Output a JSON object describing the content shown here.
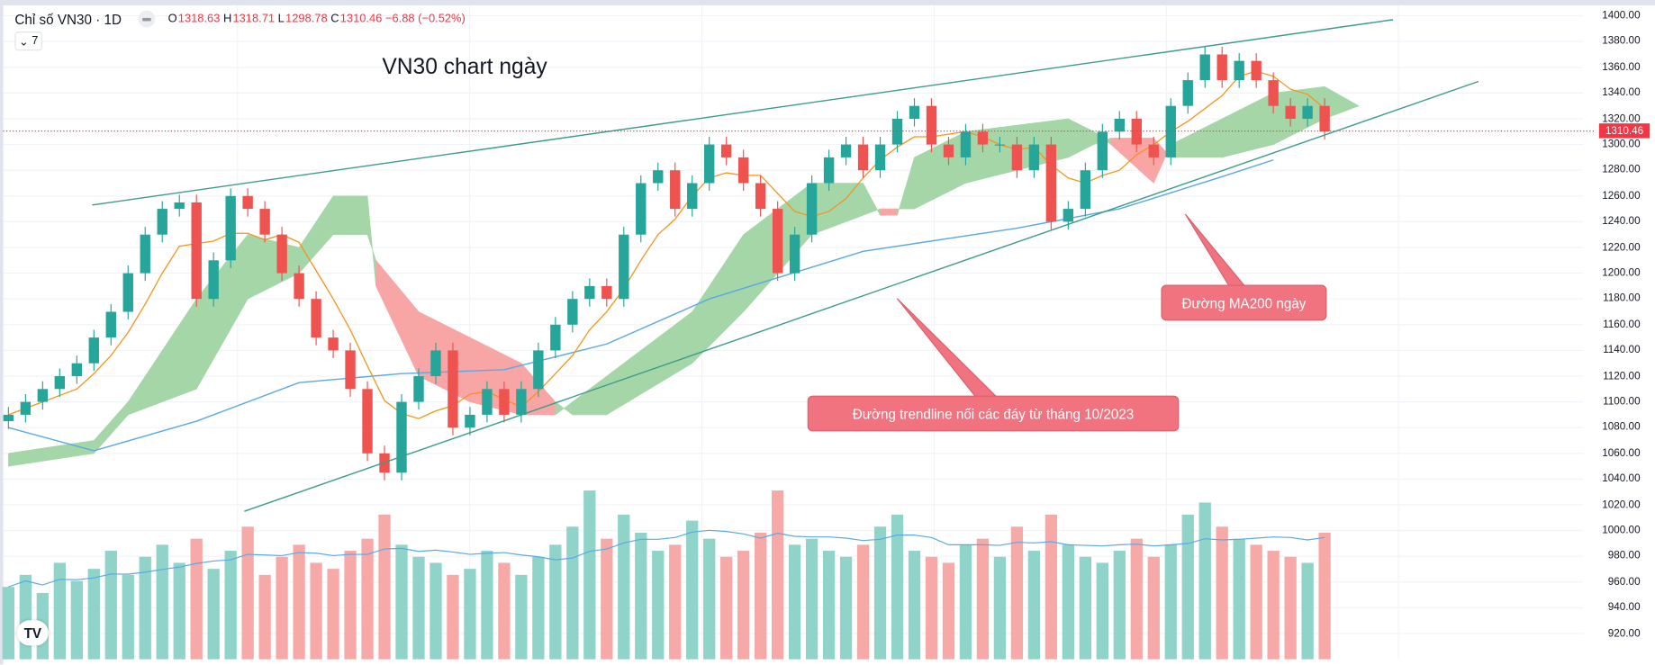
{
  "header": {
    "symbol": "Chỉ số VN30 · 1D",
    "open_label": "O",
    "open": "1318.63",
    "high_label": "H",
    "high": "1318.71",
    "low_label": "L",
    "low": "1298.78",
    "close_label": "C",
    "close": "1310.46",
    "change": "−6.88 (−0.52%)",
    "collapse_count": "7"
  },
  "annotations": {
    "title": "VN30 chart ngày",
    "trendline_note": "Đường trendline nối các đáy từ tháng 10/2023",
    "ma200_note": "Đường MA200 ngày"
  },
  "last_price_label": "1310.46",
  "logo": "TV",
  "colors": {
    "up": "#26a69a",
    "down": "#ef5350",
    "ma20": "#f7931a",
    "ma200": "#5aa9e6",
    "trendline": "#3c9c8c",
    "cloud_up": "#a5d6a7",
    "cloud_down": "#f8a5a5",
    "note_bg": "#f0737f"
  },
  "chart_data": {
    "type": "candlestick",
    "ylim": [
      910,
      1405
    ],
    "y_ticks": [
      "1400.00",
      "1380.00",
      "1360.00",
      "1340.00",
      "1320.00",
      "1300.00",
      "1280.00",
      "1260.00",
      "1240.00",
      "1220.00",
      "1200.00",
      "1180.00",
      "1160.00",
      "1140.00",
      "1120.00",
      "1100.00",
      "1080.00",
      "1060.00",
      "1040.00",
      "1020.00",
      "1000.00",
      "980.00",
      "960.00",
      "940.00",
      "920.00"
    ],
    "close": [
      1090,
      1100,
      1110,
      1120,
      1130,
      1150,
      1170,
      1200,
      1230,
      1250,
      1255,
      1180,
      1210,
      1260,
      1250,
      1230,
      1200,
      1180,
      1150,
      1140,
      1110,
      1060,
      1045,
      1100,
      1120,
      1140,
      1080,
      1090,
      1110,
      1090,
      1110,
      1140,
      1160,
      1180,
      1190,
      1180,
      1230,
      1270,
      1280,
      1250,
      1270,
      1300,
      1290,
      1270,
      1250,
      1200,
      1230,
      1270,
      1290,
      1300,
      1280,
      1300,
      1320,
      1330,
      1300,
      1290,
      1310,
      1300,
      1300,
      1280,
      1300,
      1240,
      1250,
      1280,
      1310,
      1320,
      1300,
      1290,
      1330,
      1350,
      1370,
      1350,
      1365,
      1350,
      1330,
      1320,
      1330,
      1310
    ],
    "volume": [
      60,
      70,
      55,
      80,
      65,
      75,
      90,
      70,
      85,
      95,
      80,
      100,
      75,
      90,
      110,
      70,
      85,
      95,
      80,
      75,
      90,
      100,
      120,
      95,
      85,
      80,
      70,
      75,
      90,
      80,
      70,
      85,
      95,
      110,
      140,
      100,
      120,
      105,
      90,
      95,
      115,
      100,
      85,
      90,
      105,
      140,
      95,
      100,
      90,
      85,
      95,
      110,
      120,
      90,
      85,
      80,
      95,
      100,
      85,
      110,
      90,
      120,
      95,
      85,
      80,
      90,
      100,
      85,
      95,
      120,
      130,
      110,
      100,
      95,
      90,
      85,
      80,
      105
    ],
    "ma200": [
      [
        0,
        1080
      ],
      [
        5,
        1062
      ],
      [
        11,
        1085
      ],
      [
        17,
        1115
      ],
      [
        23,
        1122
      ],
      [
        29,
        1125
      ],
      [
        35,
        1145
      ],
      [
        41,
        1180
      ],
      [
        50,
        1217
      ],
      [
        59,
        1235
      ],
      [
        65,
        1250
      ],
      [
        71,
        1275
      ],
      [
        74,
        1288
      ]
    ],
    "ichimoku_cloud": [
      [
        0,
        1060,
        1050
      ],
      [
        5,
        1070,
        1060
      ],
      [
        7,
        1100,
        1090
      ],
      [
        11,
        1180,
        1110
      ],
      [
        14,
        1230,
        1180
      ],
      [
        17,
        1220,
        1200
      ],
      [
        19,
        1260,
        1230
      ],
      [
        21,
        1260,
        1230
      ],
      [
        21.5,
        1190,
        1210
      ],
      [
        24,
        1120,
        1170
      ],
      [
        27,
        1100,
        1150
      ],
      [
        30,
        1090,
        1130
      ],
      [
        32,
        1090,
        1100
      ],
      [
        33,
        1100,
        1090
      ],
      [
        35,
        1120,
        1090
      ],
      [
        40,
        1170,
        1130
      ],
      [
        43,
        1230,
        1170
      ],
      [
        47,
        1270,
        1230
      ],
      [
        50,
        1270,
        1245
      ],
      [
        51,
        1245,
        1250
      ],
      [
        52,
        1245,
        1250
      ],
      [
        53,
        1290,
        1250
      ],
      [
        56,
        1310,
        1270
      ],
      [
        62,
        1320,
        1290
      ],
      [
        63.5,
        1310,
        1300
      ],
      [
        64.5,
        1300,
        1305
      ],
      [
        67,
        1270,
        1305
      ],
      [
        68,
        1300,
        1290
      ],
      [
        71,
        1320,
        1290
      ],
      [
        74,
        1340,
        1300
      ],
      [
        77,
        1345,
        1320
      ],
      [
        79,
        1330,
        1330
      ]
    ],
    "trendlines": [
      {
        "from": [
          4.9,
          1253
        ],
        "to": [
          81,
          1397
        ]
      },
      {
        "from": [
          13.8,
          1015
        ],
        "to": [
          86,
          1349
        ]
      }
    ]
  }
}
